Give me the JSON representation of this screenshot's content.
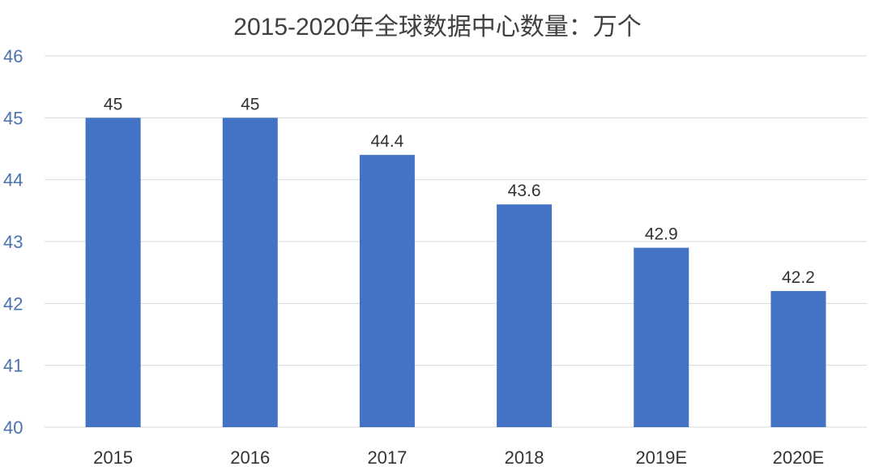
{
  "chart_data": {
    "type": "bar",
    "title": "2015-2020年全球数据中心数量：万个",
    "categories": [
      "2015",
      "2016",
      "2017",
      "2018",
      "2019E",
      "2020E"
    ],
    "values": [
      45,
      45,
      44.4,
      43.6,
      42.9,
      42.2
    ],
    "data_labels": [
      "45",
      "45",
      "44.4",
      "43.6",
      "42.9",
      "42.2"
    ],
    "ylim": [
      40,
      46
    ],
    "yticks": [
      "40",
      "41",
      "42",
      "43",
      "44",
      "45",
      "46"
    ],
    "xlabel": "",
    "ylabel": "",
    "grid": true,
    "legend": "none",
    "colors": {
      "bar": "#4472C4",
      "ytick": "#4A72B0",
      "grid": "#D9D9D9"
    }
  }
}
